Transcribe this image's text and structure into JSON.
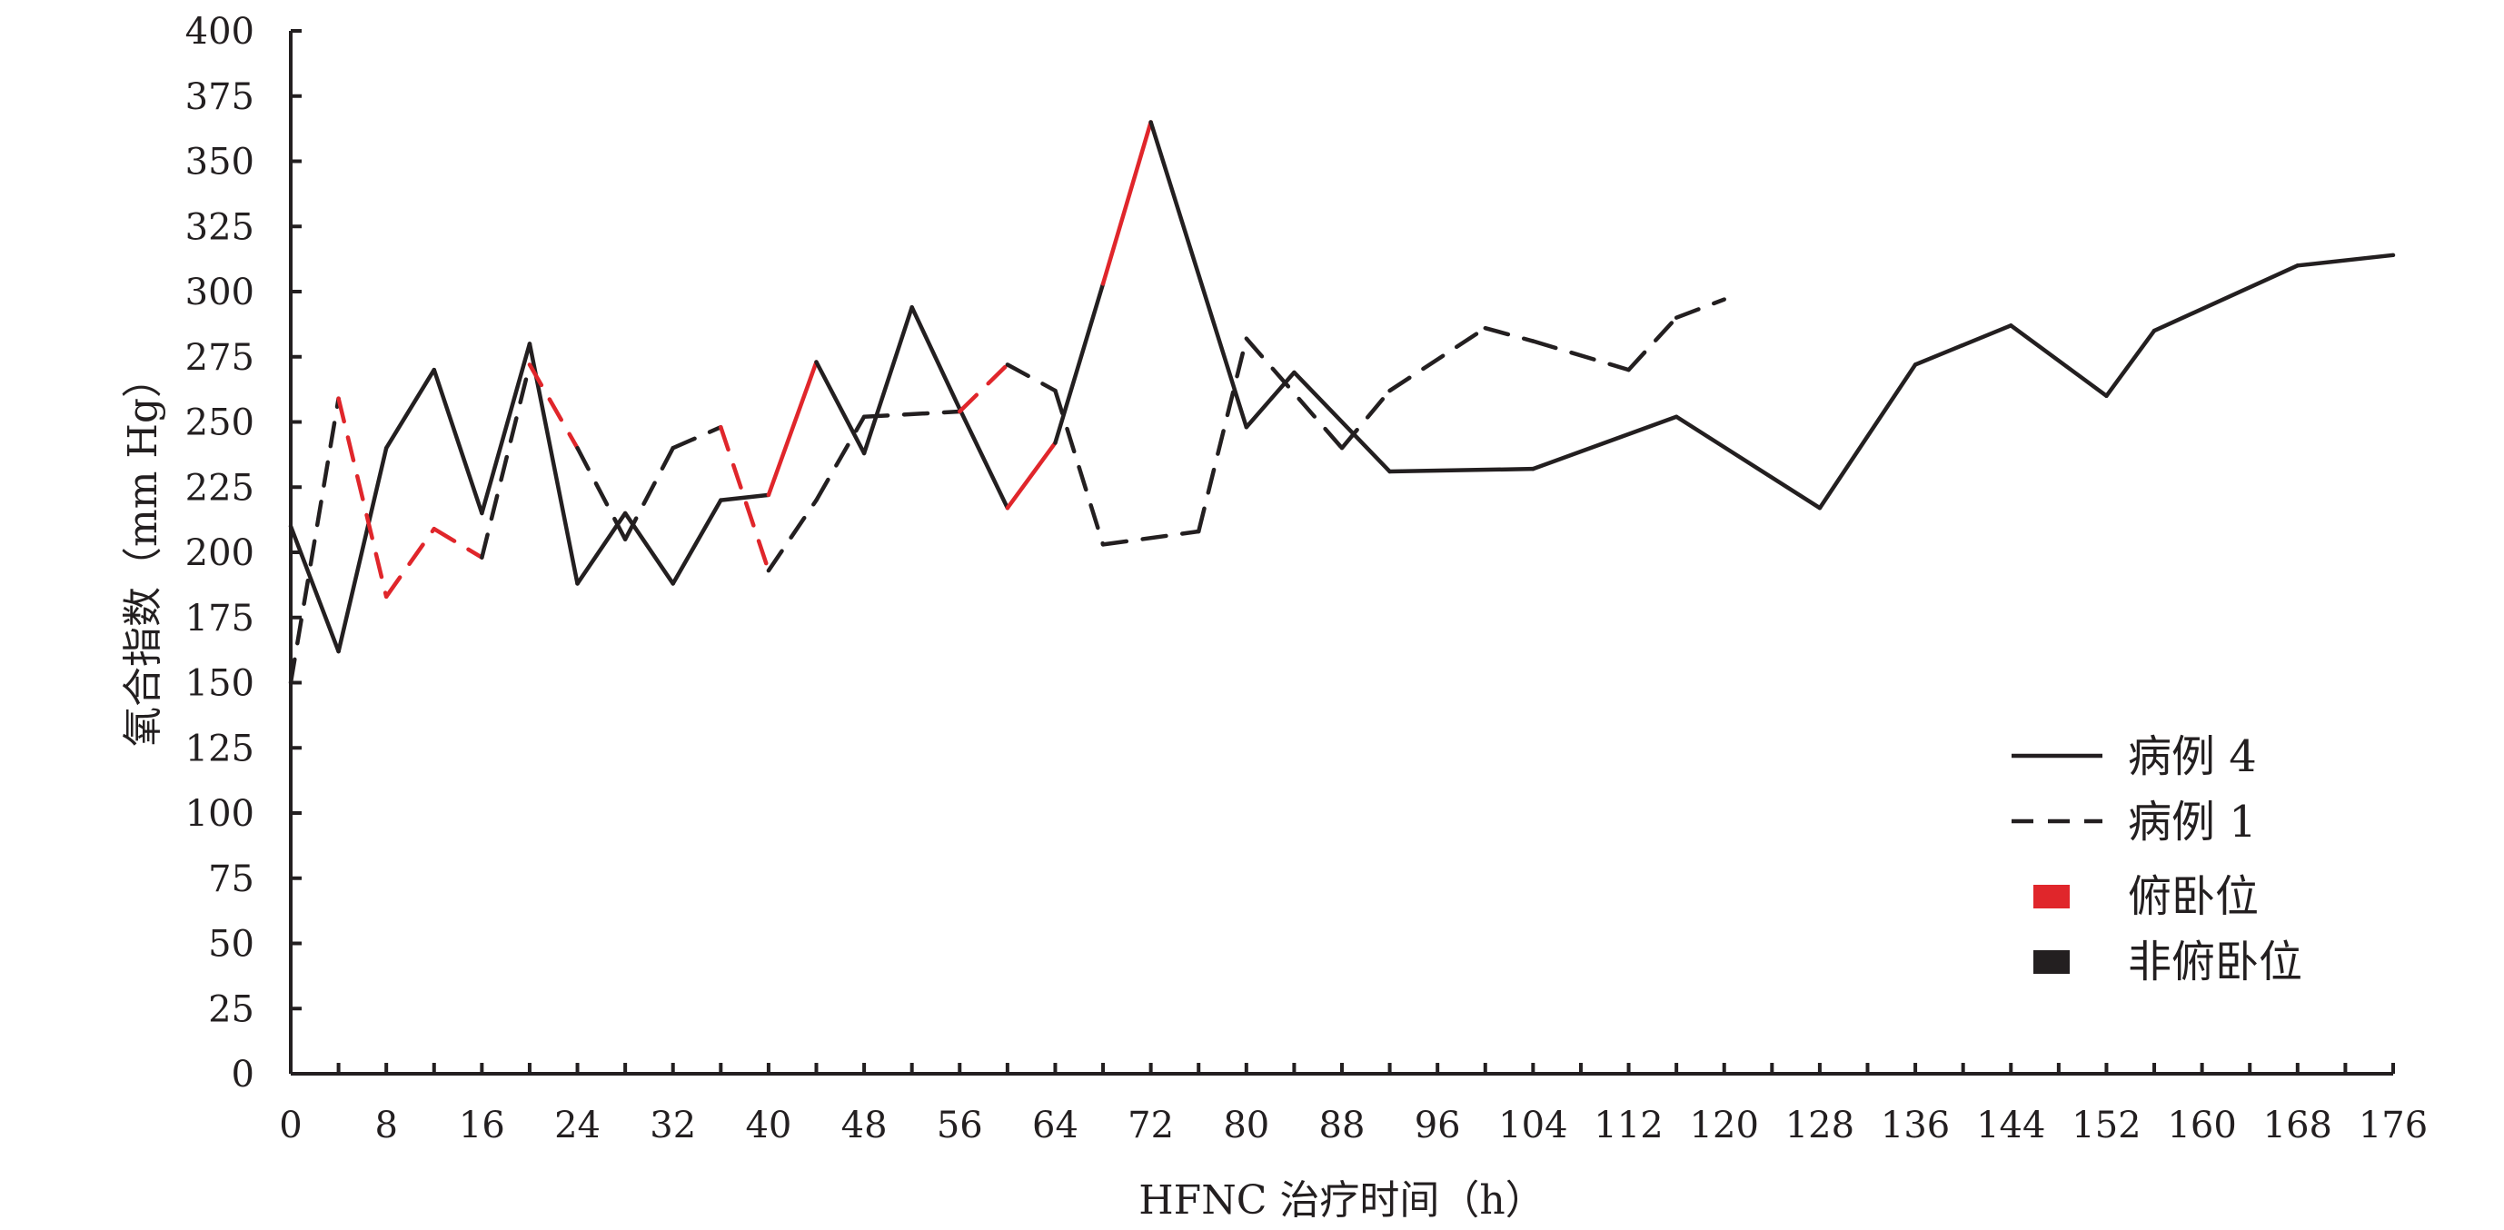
{
  "chart_data": {
    "type": "line",
    "xlabel": "HFNC 治疗时间（h）",
    "ylabel": "氧合指数（mm Hg）",
    "xlim": [
      0,
      176
    ],
    "ylim": [
      0,
      400
    ],
    "x_ticks": [
      0,
      8,
      16,
      24,
      32,
      40,
      48,
      56,
      64,
      72,
      80,
      88,
      96,
      104,
      112,
      120,
      128,
      136,
      144,
      152,
      160,
      168,
      176
    ],
    "y_ticks": [
      0,
      25,
      50,
      75,
      100,
      125,
      150,
      175,
      200,
      225,
      250,
      275,
      300,
      325,
      350,
      375,
      400
    ],
    "grid": false,
    "legend_position": "bottom-right",
    "colors": {
      "prone": "#e0262b",
      "non_prone": "#231f20"
    },
    "series": [
      {
        "name": "病例 4",
        "line_style": "solid",
        "x": [
          0,
          4,
          8,
          12,
          16,
          20,
          24,
          28,
          32,
          36,
          40,
          44,
          48,
          52,
          56,
          60,
          64,
          68,
          72,
          80,
          84,
          92,
          104,
          116,
          128,
          136,
          144,
          152,
          156,
          168,
          176
        ],
        "y": [
          210,
          162,
          240,
          270,
          215,
          280,
          188,
          215,
          188,
          220,
          222,
          273,
          238,
          294,
          255,
          217,
          242,
          303,
          365,
          248,
          269,
          231,
          232,
          252,
          217,
          272,
          287,
          260,
          285,
          310,
          314
        ],
        "prone_segments": [
          [
            10,
            11
          ],
          [
            15,
            16
          ],
          [
            17,
            18
          ]
        ]
      },
      {
        "name": "病例 1",
        "line_style": "dashed",
        "x": [
          0,
          4,
          8,
          12,
          16,
          20,
          24,
          28,
          32,
          36,
          40,
          44,
          48,
          56,
          60,
          64,
          68,
          76,
          80,
          88,
          92,
          100,
          104,
          112,
          116,
          120
        ],
        "y": [
          150,
          259,
          183,
          209,
          198,
          272,
          240,
          205,
          240,
          248,
          193,
          220,
          252,
          254,
          272,
          262,
          203,
          208,
          282,
          240,
          262,
          286,
          281,
          270,
          290,
          297
        ],
        "prone_segments": [
          [
            1,
            2
          ],
          [
            2,
            3
          ],
          [
            3,
            4
          ],
          [
            5,
            6
          ],
          [
            9,
            10
          ],
          [
            13,
            14
          ]
        ]
      }
    ],
    "legend": [
      {
        "label": "病例 4",
        "kind": "solid-line"
      },
      {
        "label": "病例 1",
        "kind": "dashed-line"
      },
      {
        "label": "俯卧位",
        "kind": "swatch",
        "color": "#e0262b"
      },
      {
        "label": "非俯卧位",
        "kind": "swatch",
        "color": "#231f20"
      }
    ]
  }
}
